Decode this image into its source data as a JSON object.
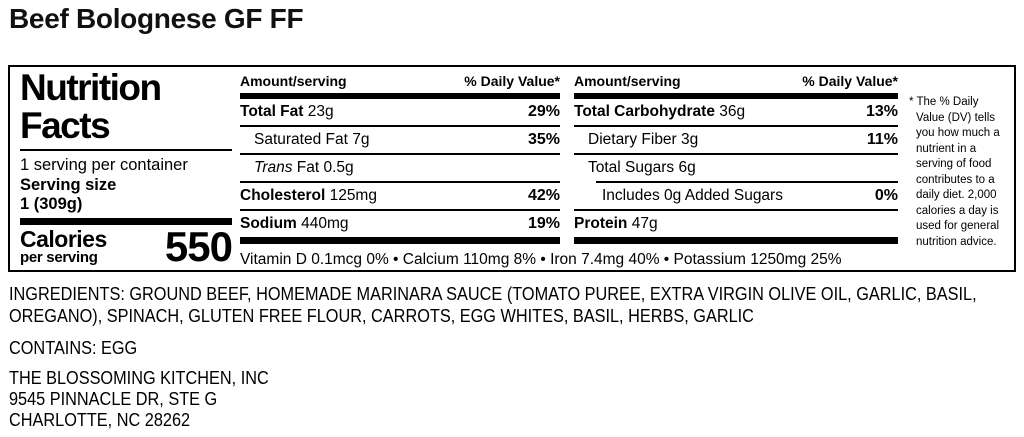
{
  "page": {
    "title": "Beef Bolognese GF FF"
  },
  "nutrition_facts": {
    "title_line1": "Nutrition",
    "title_line2": "Facts",
    "servings_per_container": "1 serving per container",
    "serving_size_label": "Serving size",
    "serving_size_value": "1 (309g)",
    "calories_label": "Calories",
    "calories_sublabel": "per serving",
    "calories_value": "550",
    "column_header": {
      "amount": "Amount/serving",
      "daily_value": "% Daily Value*"
    },
    "col1_rows": [
      {
        "bold": "Total Fat",
        "italic": "",
        "text": " 23g",
        "dv": "29%"
      },
      {
        "bold": "",
        "italic": "",
        "text": "Saturated Fat 7g",
        "dv": "35%"
      },
      {
        "bold": "",
        "italic": "Trans",
        "text": " Fat 0.5g",
        "dv": ""
      },
      {
        "bold": "Cholesterol",
        "italic": "",
        "text": " 125mg",
        "dv": "42%"
      },
      {
        "bold": "Sodium",
        "italic": "",
        "text": " 440mg",
        "dv": "19%"
      }
    ],
    "col2_rows": [
      {
        "bold": "Total Carbohydrate",
        "italic": "",
        "text": " 36g",
        "dv": "13%"
      },
      {
        "bold": "",
        "italic": "",
        "text": "Dietary Fiber 3g",
        "dv": "11%"
      },
      {
        "bold": "",
        "italic": "",
        "text": "Total Sugars 6g",
        "dv": ""
      },
      {
        "bold": "",
        "italic": "",
        "text": "Includes 0g Added Sugars",
        "dv": "0%"
      },
      {
        "bold": "Protein",
        "italic": "",
        "text": " 47g",
        "dv": ""
      }
    ],
    "micronutrients": "Vitamin D 0.1mcg 0% • Calcium 110mg 8% • Iron 7.4mg 40% • Potassium 1250mg 25%",
    "footnote_marker": "*",
    "footnote": "The % Daily Value (DV) tells you how much a nutrient in a serving of food contributes to a daily diet. 2,000 calories a day is used for general nutrition advice."
  },
  "ingredients": "INGREDIENTS: GROUND BEEF, HOMEMADE MARINARA SAUCE (TOMATO PUREE, EXTRA VIRGIN OLIVE OIL, GARLIC, BASIL, OREGANO), SPINACH, GLUTEN FREE FLOUR, CARROTS, EGG WHITES, BASIL, HERBS, GARLIC",
  "allergens": "CONTAINS: EGG",
  "manufacturer": {
    "name": "THE BLOSSOMING KITCHEN, INC",
    "address_line1": "9545 PINNACLE DR, STE G",
    "address_line2": "CHARLOTTE, NC 28262"
  },
  "colors": {
    "text": "#000000",
    "background": "#ffffff"
  }
}
